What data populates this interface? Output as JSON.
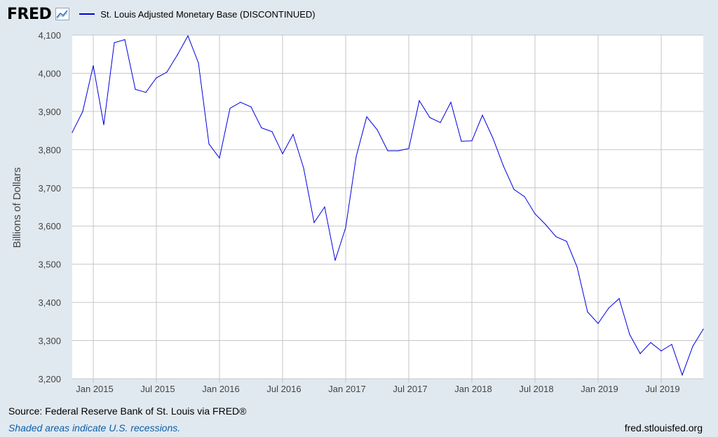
{
  "header": {
    "logo": "FRED",
    "logo_icon": "line-graph-icon",
    "legend_label": "St. Louis Adjusted Monetary Base (DISCONTINUED)"
  },
  "colors": {
    "series": "#0000e0",
    "grid": "#c6c6c6",
    "plot_bg": "#ffffff",
    "page_bg": "#e1e9f0",
    "recession_note": "#0b5ea8"
  },
  "footer": {
    "source": "Source: Federal Reserve Bank of St. Louis via FRED®",
    "recession_note": "Shaded areas indicate U.S. recessions.",
    "url": "fred.stlouisfed.org"
  },
  "chart_data": {
    "type": "line",
    "title": "",
    "xlabel": "",
    "ylabel": "Billions of Dollars",
    "ylim": [
      3200,
      4100
    ],
    "yticks": [
      "3,200",
      "3,300",
      "3,400",
      "3,500",
      "3,600",
      "3,700",
      "3,800",
      "3,900",
      "4,000",
      "4,100"
    ],
    "xticks": [
      "Jan 2015",
      "Jul 2015",
      "Jan 2016",
      "Jul 2016",
      "Jan 2017",
      "Jul 2017",
      "Jan 2018",
      "Jul 2018",
      "Jan 2019",
      "Jul 2019"
    ],
    "x_start": "Nov 2014",
    "x_end": "Nov 2019",
    "grid": true,
    "legend_position": "top",
    "series": [
      {
        "name": "St. Louis Adjusted Monetary Base (DISCONTINUED)",
        "x": [
          "2014-11",
          "2014-12",
          "2015-01",
          "2015-02",
          "2015-03",
          "2015-04",
          "2015-05",
          "2015-06",
          "2015-07",
          "2015-08",
          "2015-09",
          "2015-10",
          "2015-11",
          "2015-12",
          "2016-01",
          "2016-02",
          "2016-03",
          "2016-04",
          "2016-05",
          "2016-06",
          "2016-07",
          "2016-08",
          "2016-09",
          "2016-10",
          "2016-11",
          "2016-12",
          "2017-01",
          "2017-02",
          "2017-03",
          "2017-04",
          "2017-05",
          "2017-06",
          "2017-07",
          "2017-08",
          "2017-09",
          "2017-10",
          "2017-11",
          "2017-12",
          "2018-01",
          "2018-02",
          "2018-03",
          "2018-04",
          "2018-05",
          "2018-06",
          "2018-07",
          "2018-08",
          "2018-09",
          "2018-10",
          "2018-11",
          "2018-12",
          "2019-01",
          "2019-02",
          "2019-03",
          "2019-04",
          "2019-05",
          "2019-06",
          "2019-07",
          "2019-08",
          "2019-09",
          "2019-10",
          "2019-11"
        ],
        "values": [
          3845,
          3900,
          4020,
          3865,
          4080,
          4088,
          3958,
          3950,
          3988,
          4003,
          4048,
          4098,
          4027,
          3815,
          3778,
          3908,
          3924,
          3912,
          3857,
          3847,
          3789,
          3840,
          3752,
          3609,
          3650,
          3510,
          3596,
          3782,
          3886,
          3852,
          3797,
          3797,
          3803,
          3928,
          3884,
          3871,
          3924,
          3822,
          3823,
          3890,
          3830,
          3757,
          3696,
          3677,
          3632,
          3604,
          3572,
          3560,
          3493,
          3375,
          3345,
          3385,
          3410,
          3316,
          3266,
          3295,
          3273,
          3290,
          3210,
          3285,
          3330
        ]
      }
    ]
  }
}
